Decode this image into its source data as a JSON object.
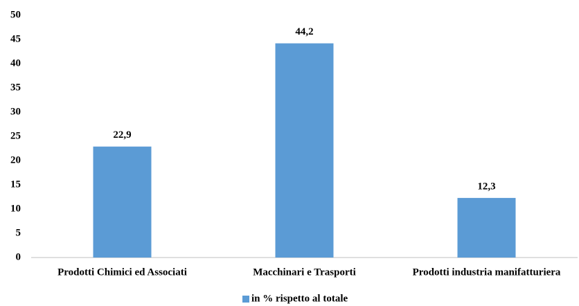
{
  "chart_data": {
    "type": "bar",
    "categories": [
      "Prodotti Chimici ed Associati",
      "Macchinari e Trasporti",
      "Prodotti industria manifatturiera"
    ],
    "series": [
      {
        "name": "in % rispetto al totale",
        "color": "#5b9bd5",
        "values": [
          22.9,
          44.2,
          12.3
        ],
        "value_labels": [
          "22,9",
          "44,2",
          "12,3"
        ]
      }
    ],
    "ylim": [
      0,
      50
    ],
    "yticks": [
      0,
      5,
      10,
      15,
      20,
      25,
      30,
      35,
      40,
      45,
      50
    ],
    "grid": false,
    "legend": "bottom"
  }
}
